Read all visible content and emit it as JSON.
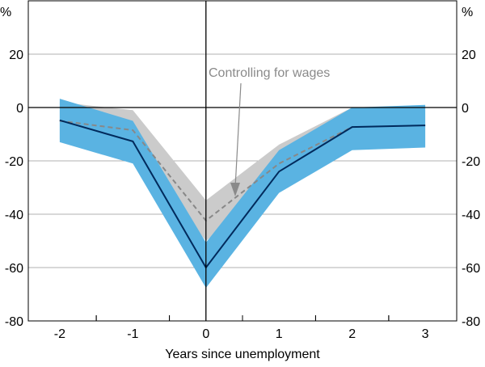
{
  "chart_data": {
    "type": "line",
    "xlabel": "Years since unemployment",
    "ylabel_left": "%",
    "ylabel_right": "%",
    "x": [
      -2,
      -1,
      0,
      1,
      2,
      3
    ],
    "xticks": [
      "-2",
      "-1",
      "0",
      "1",
      "2",
      "3"
    ],
    "yticks": [
      "20",
      "0",
      "-20",
      "-40",
      "-60",
      "-80"
    ],
    "ylim": [
      -80,
      40
    ],
    "xlim": [
      -2.43,
      3.43
    ],
    "grid": true,
    "series": [
      {
        "values": [
          -4.8,
          -12.7,
          -60,
          -24,
          -7.3,
          -6.7
        ],
        "band_upper": [
          3.3,
          -5,
          -50.6,
          -16,
          0,
          1
        ],
        "band_lower": [
          -13,
          -21,
          -67.6,
          -32,
          -16,
          -15
        ],
        "line_color": "#002a5c",
        "band_color": "#5ab3e2"
      },
      {
        "name": "Controlling for wages",
        "x": [
          -2,
          -1,
          0,
          1,
          2
        ],
        "values": [
          -5,
          -8.5,
          -42.4,
          -21,
          -7.3
        ],
        "band_upper": [
          2,
          -1,
          -34.8,
          -13.9,
          0
        ],
        "band_lower": [
          -12,
          -16,
          -50,
          -28,
          -14.6
        ],
        "line_color": "#888888",
        "line_style": "dashed",
        "band_color": "#cbcbcb"
      }
    ],
    "annotation": "Controlling for wages"
  }
}
